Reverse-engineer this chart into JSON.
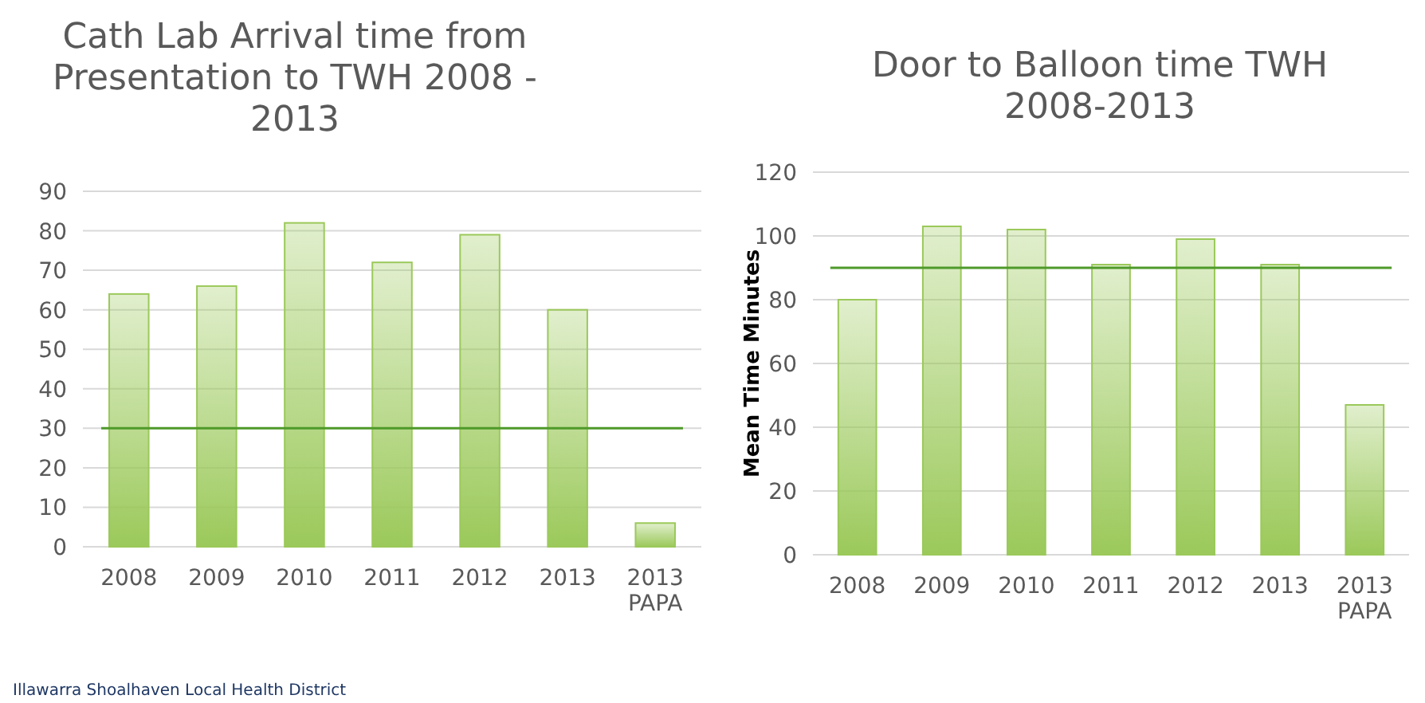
{
  "chart_data": [
    {
      "type": "bar",
      "title": "Cath Lab Arrival time from Presentation to TWH 2008  - 2013",
      "categories": [
        "2008",
        "2009",
        "2010",
        "2011",
        "2012",
        "2013",
        "2013 PAPA"
      ],
      "values": [
        64,
        66,
        82,
        72,
        79,
        60,
        6
      ],
      "color": "#9bc95a",
      "ylim": [
        0,
        90
      ],
      "yticks": [
        0,
        10,
        20,
        30,
        40,
        50,
        60,
        70,
        80,
        90
      ],
      "grid": "y",
      "ref_lines": [
        {
          "axis": "y",
          "value": 30,
          "color": "#4f9a2a"
        }
      ],
      "annotations": [
        "Illawarra Shoalhaven Local Health District"
      ]
    },
    {
      "type": "bar",
      "title": "Door to Balloon time TWH 2008-2013",
      "ylabel": "Mean Time Minutes",
      "categories": [
        "2008",
        "2009",
        "2010",
        "2011",
        "2012",
        "2013",
        "2013 PAPA"
      ],
      "values": [
        80,
        103,
        102,
        91,
        99,
        91,
        47
      ],
      "color": "#9bc95a",
      "ylim": [
        0,
        120
      ],
      "yticks": [
        0,
        20,
        40,
        60,
        80,
        100,
        120
      ],
      "grid": "y",
      "ref_lines": [
        {
          "axis": "y",
          "value": 90,
          "color": "#4f9a2a"
        }
      ]
    }
  ]
}
